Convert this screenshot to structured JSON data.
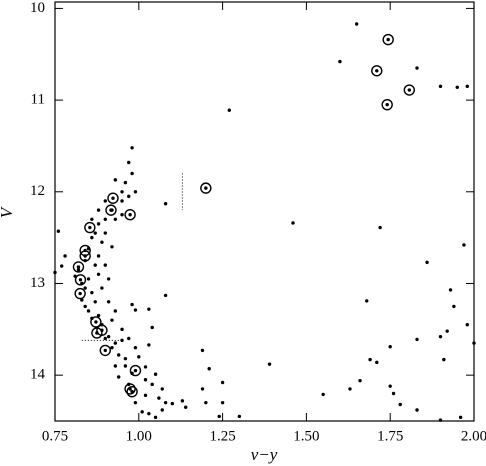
{
  "chart_data": {
    "type": "scatter",
    "x_label": "v−y",
    "y_label": "V",
    "xlim": [
      0.75,
      2.0
    ],
    "ylim": [
      14.5,
      9.93
    ],
    "xticks": [
      0.75,
      {
        "value": 1.0,
        "label": "1.00"
      },
      1.25,
      {
        "value": 1.5,
        "label": "1.50"
      },
      1.75,
      {
        "value": 2.0,
        "label": "2.00"
      }
    ],
    "yticks": [
      10,
      11,
      12,
      13,
      14
    ],
    "series": [
      {
        "color": "#000000",
        "marker": "dot",
        "x": [
          1.65,
          1.6,
          1.83,
          1.9,
          1.95,
          1.98,
          1.27,
          1.46,
          1.72,
          1.97,
          1.86,
          1.68,
          1.93,
          1.94,
          1.92,
          1.98,
          2.0,
          1.9,
          1.83,
          1.69,
          1.75,
          1.71,
          1.91,
          1.39,
          1.66,
          1.75,
          1.63,
          1.76,
          1.55,
          1.78,
          1.83,
          1.9,
          1.96,
          1.19,
          1.21,
          1.25,
          1.19,
          1.2,
          1.14,
          1.25,
          1.3,
          1.24,
          1.1,
          1.05,
          1.03,
          1.07,
          1.04,
          1.06,
          1.08,
          1.13,
          1.01,
          1.02,
          1.0,
          1.03,
          1.04,
          0.99,
          0.97,
          0.95,
          0.96,
          0.98,
          1.02,
          1.05,
          1.07,
          0.93,
          0.94,
          1.02,
          0.76,
          0.77,
          0.78,
          0.75,
          1.08,
          1.08,
          1.03,
          0.99,
          0.98,
          0.95,
          0.92,
          0.88,
          0.87,
          0.85,
          0.86,
          0.84,
          0.83,
          0.85,
          0.88,
          0.9,
          0.92,
          0.89,
          0.86,
          0.87,
          0.88,
          0.9,
          0.92,
          0.95,
          0.97,
          0.96,
          0.98,
          0.97,
          0.98,
          0.93,
          0.95,
          0.99,
          0.93,
          0.95,
          0.9,
          0.85,
          0.84,
          0.82,
          0.81,
          0.83,
          0.84,
          0.86,
          0.89,
          0.91,
          0.93,
          0.88,
          0.87,
          0.91,
          0.89,
          0.91,
          0.93,
          0.9,
          0.92,
          0.94,
          0.96,
          0.97,
          0.99,
          0.9,
          0.88,
          0.86
        ],
        "y": [
          10.17,
          10.58,
          10.65,
          10.85,
          10.86,
          10.85,
          11.11,
          12.34,
          12.39,
          12.58,
          12.77,
          13.19,
          13.07,
          13.25,
          13.52,
          13.45,
          13.65,
          13.58,
          13.61,
          13.83,
          13.69,
          13.86,
          13.83,
          13.88,
          14.06,
          14.12,
          14.15,
          14.2,
          14.21,
          14.32,
          14.38,
          14.49,
          14.46,
          13.73,
          13.93,
          14.08,
          14.15,
          14.3,
          14.35,
          14.3,
          14.45,
          14.45,
          14.31,
          14.46,
          14.42,
          14.38,
          14.1,
          14.25,
          14.3,
          14.28,
          14.4,
          13.91,
          13.8,
          13.67,
          13.48,
          13.7,
          13.6,
          13.62,
          13.82,
          13.98,
          14.22,
          13.99,
          14.15,
          13.9,
          14.02,
          14.05,
          12.43,
          12.81,
          12.7,
          12.88,
          12.13,
          13.13,
          13.28,
          13.29,
          13.23,
          13.5,
          13.4,
          13.35,
          13.2,
          13.3,
          13.1,
          13.05,
          13.0,
          12.95,
          12.9,
          12.8,
          12.6,
          12.55,
          12.5,
          12.45,
          12.35,
          12.3,
          12.2,
          12.1,
          12.05,
          11.9,
          11.8,
          11.68,
          11.52,
          11.87,
          12.0,
          12.0,
          12.3,
          12.25,
          12.45,
          12.62,
          12.75,
          12.85,
          12.92,
          13.18,
          13.25,
          13.38,
          13.45,
          13.58,
          13.65,
          12.7,
          12.8,
          12.95,
          13.05,
          13.2,
          13.3,
          13.6,
          13.7,
          13.78,
          13.9,
          14.1,
          14.3,
          12.1,
          12.2,
          12.3
        ]
      },
      {
        "color": "#000000",
        "marker": "circled",
        "x": [
          1.744,
          1.71,
          1.807,
          1.741,
          1.2,
          0.923,
          0.917,
          0.974,
          0.854,
          0.84,
          0.84,
          0.82,
          0.826,
          0.825,
          0.872,
          0.89,
          0.875,
          0.9,
          0.99,
          0.974,
          0.98
        ],
        "y": [
          10.34,
          10.68,
          10.89,
          11.05,
          11.96,
          12.07,
          12.2,
          12.25,
          12.39,
          12.64,
          12.7,
          12.82,
          12.96,
          13.11,
          13.42,
          13.51,
          13.54,
          13.73,
          13.95,
          14.15,
          14.18
        ]
      }
    ],
    "dotted_segments": [
      {
        "x": [
          1.13,
          1.13
        ],
        "y": [
          11.8,
          12.2
        ]
      },
      {
        "x": [
          0.83,
          0.95
        ],
        "y": [
          13.62,
          13.62
        ]
      }
    ]
  }
}
